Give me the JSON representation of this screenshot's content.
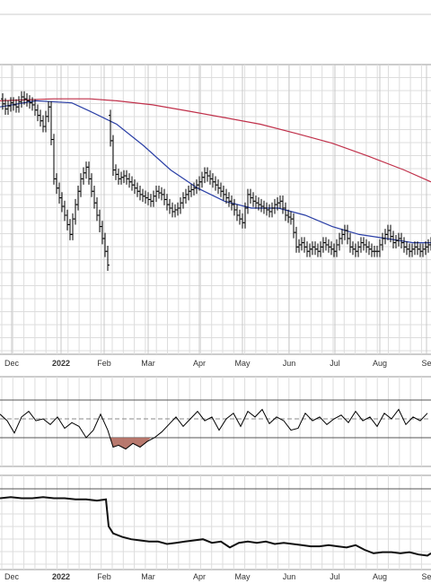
{
  "chart_data": [
    {
      "type": "ohlc",
      "panel": "price",
      "title": "",
      "grid": true,
      "x_tick_labels": [
        "Dec",
        "2022",
        "Feb",
        "Mar",
        "Apr",
        "May",
        "Jun",
        "Jul",
        "Aug",
        "Se"
      ],
      "y_scale": "log",
      "ylim": [
        25,
        115
      ],
      "colors": {
        "bars": "#000000",
        "ma_short": "#2a3fa6",
        "ma_long": "#c0304a",
        "grid": "#dddddd"
      },
      "series": [
        {
          "kind": "price",
          "x": [
            0,
            6,
            12,
            18,
            24,
            30,
            36,
            42,
            48,
            54,
            60,
            66,
            72,
            78,
            84,
            90,
            96,
            102,
            108,
            114,
            120
          ],
          "close": [
            96,
            91,
            94,
            92,
            97,
            95,
            93,
            88,
            83,
            92,
            63,
            57,
            52,
            47,
            55,
            63,
            67,
            59,
            52,
            46,
            40
          ]
        },
        {
          "kind": "price",
          "x": [
            120,
            126,
            132,
            138,
            144,
            150,
            156,
            162,
            168,
            174,
            180,
            186,
            192,
            198,
            204,
            210,
            216,
            222,
            228,
            234,
            240,
            246,
            252,
            258,
            264,
            270,
            276,
            282,
            288,
            294,
            300,
            306,
            312,
            318,
            324,
            330,
            336,
            342,
            348,
            354,
            360,
            366,
            372,
            378,
            384,
            390,
            396,
            402,
            408,
            414,
            420,
            426,
            432,
            438,
            444,
            450,
            456,
            462,
            468,
            474,
            480
          ],
          "close": [
            88,
            66,
            63,
            64,
            62,
            60,
            58,
            57,
            56,
            59,
            58,
            55,
            53,
            54,
            57,
            59,
            60,
            62,
            65,
            63,
            61,
            59,
            57,
            55,
            52,
            50,
            58,
            56,
            55,
            54,
            53,
            55,
            56,
            52,
            51,
            44,
            45,
            43,
            44,
            43,
            45,
            44,
            43,
            46,
            48,
            44,
            43,
            45,
            44,
            43,
            43,
            46,
            48,
            45,
            46,
            44,
            43,
            44,
            43,
            44,
            45
          ]
        },
        {
          "kind": "ma_short",
          "x": [
            0,
            40,
            80,
            100,
            130,
            160,
            190,
            220,
            250,
            280,
            310,
            340,
            370,
            400,
            430,
            460,
            480
          ],
          "values": [
            92,
            95,
            94,
            90,
            84,
            75,
            66,
            60,
            56,
            54,
            54,
            52,
            49,
            47,
            46,
            45,
            45
          ]
        },
        {
          "kind": "ma_long",
          "x": [
            0,
            60,
            100,
            130,
            170,
            210,
            250,
            290,
            330,
            370,
            410,
            450,
            480
          ],
          "values": [
            95,
            96,
            96,
            95,
            93,
            90,
            87,
            84,
            80,
            76,
            71,
            66,
            62
          ]
        }
      ]
    },
    {
      "type": "line",
      "panel": "oscillator",
      "ylim": [
        0,
        100
      ],
      "reference_lines": [
        70,
        50,
        30
      ],
      "colors": {
        "line": "#000000",
        "fill_below_30": "#b06a5e"
      },
      "x": [
        0,
        8,
        16,
        24,
        32,
        40,
        48,
        56,
        64,
        72,
        80,
        88,
        96,
        104,
        112,
        120,
        126,
        132,
        140,
        148,
        156,
        164,
        172,
        180,
        188,
        196,
        204,
        212,
        220,
        228,
        236,
        244,
        252,
        260,
        268,
        276,
        284,
        292,
        300,
        308,
        316,
        324,
        332,
        340,
        348,
        356,
        364,
        372,
        380,
        388,
        396,
        404,
        412,
        420,
        428,
        436,
        444,
        452,
        460,
        468,
        476
      ],
      "values": [
        55,
        48,
        35,
        52,
        58,
        48,
        50,
        44,
        52,
        40,
        46,
        42,
        30,
        38,
        55,
        38,
        20,
        22,
        18,
        24,
        20,
        26,
        30,
        36,
        44,
        52,
        42,
        50,
        58,
        48,
        52,
        38,
        50,
        56,
        42,
        58,
        52,
        60,
        45,
        52,
        48,
        38,
        40,
        56,
        48,
        52,
        44,
        50,
        54,
        46,
        58,
        48,
        52,
        42,
        56,
        50,
        60,
        44,
        52,
        48,
        56
      ]
    },
    {
      "type": "line",
      "panel": "relative",
      "colors": {
        "line": "#111111"
      },
      "x": [
        0,
        12,
        24,
        36,
        48,
        60,
        72,
        84,
        96,
        108,
        118,
        121,
        126,
        136,
        146,
        156,
        166,
        176,
        186,
        196,
        206,
        216,
        226,
        236,
        246,
        256,
        266,
        276,
        286,
        296,
        306,
        316,
        326,
        336,
        346,
        356,
        366,
        376,
        386,
        396,
        406,
        416,
        426,
        436,
        446,
        456,
        466,
        476,
        480
      ],
      "values": [
        82,
        83,
        82,
        82,
        83,
        82,
        82,
        81,
        81,
        80,
        81,
        58,
        52,
        49,
        47,
        46,
        45,
        45,
        43,
        44,
        45,
        46,
        47,
        44,
        45,
        40,
        44,
        45,
        44,
        45,
        43,
        44,
        43,
        42,
        41,
        41,
        42,
        41,
        40,
        42,
        38,
        35,
        36,
        36,
        35,
        36,
        34,
        33,
        35
      ]
    }
  ]
}
